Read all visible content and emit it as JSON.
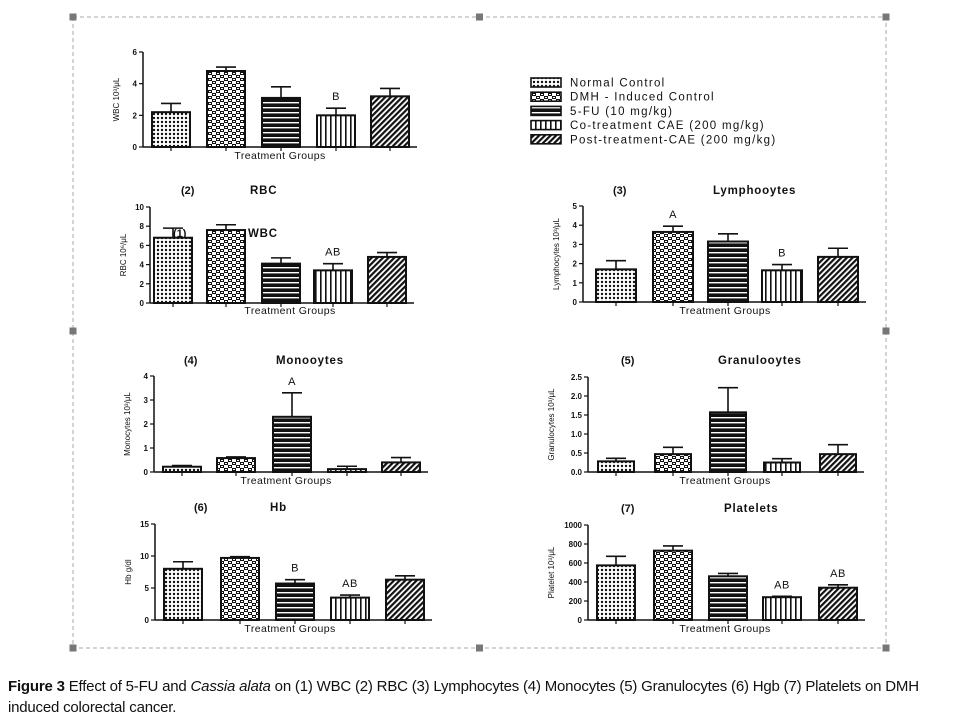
{
  "caption": {
    "label": "Figure 3",
    "text_before_italic": " Effect of 5-FU and ",
    "italic": "Cassia alata",
    "text_after_italic": " on (1) WBC (2) RBC (3) Lymphocytes (4) Monocytes (5) Granulocytes (6) Hgb (7) Platelets on DMH induced colorectal cancer."
  },
  "legend": {
    "placement": "top-right",
    "entries": [
      {
        "name": "Normal Control",
        "pattern": "dots"
      },
      {
        "name": "DMH - Induced Control",
        "pattern": "checker"
      },
      {
        "name": "5-FU (10 mg/kg)",
        "pattern": "hstripes"
      },
      {
        "name": "Co-treatment CAE (200 mg/kg)",
        "pattern": "vstripes"
      },
      {
        "name": "Post-treatment-CAE (200 mg/kg)",
        "pattern": "diagonal"
      }
    ]
  },
  "chart_data": [
    {
      "type": "bar",
      "panel": "(1)",
      "title": "WBC",
      "xlabel": "Treatment Groups",
      "ylabel": "WBC 10³/μL",
      "ylim": [
        0,
        6
      ],
      "yticks": [
        "0",
        "2",
        "4",
        "6"
      ],
      "categories": [
        "Normal Control",
        "DMH - Induced Control",
        "5-FU (10 mg/kg)",
        "Co-treatment CAE (200 mg/kg)",
        "Post-treatment-CAE (200 mg/kg)"
      ],
      "values": [
        2.2,
        4.8,
        3.1,
        2.0,
        3.2
      ],
      "errors": [
        0.55,
        0.25,
        0.7,
        0.45,
        0.5
      ],
      "annotations": [
        "",
        "",
        "",
        "B",
        ""
      ]
    },
    {
      "type": "bar",
      "panel": "(2)",
      "title": "RBC",
      "xlabel": "Treatment Groups",
      "ylabel": "RBC 10⁶/μL",
      "ylim": [
        0,
        10
      ],
      "yticks": [
        "0",
        "2",
        "4",
        "6",
        "8",
        "10"
      ],
      "categories": [
        "Normal Control",
        "DMH - Induced Control",
        "5-FU (10 mg/kg)",
        "Co-treatment CAE (200 mg/kg)",
        "Post-treatment-CAE (200 mg/kg)"
      ],
      "values": [
        6.8,
        7.6,
        4.1,
        3.4,
        4.8
      ],
      "errors": [
        1.0,
        0.55,
        0.6,
        0.7,
        0.45
      ],
      "annotations": [
        "",
        "",
        "",
        "AB",
        ""
      ]
    },
    {
      "type": "bar",
      "panel": "(3)",
      "title": "Lymphooytes",
      "xlabel": "Treatment Groups",
      "ylabel": "Lymphocytes 10³/μL",
      "ylim": [
        0,
        5
      ],
      "yticks": [
        "0",
        "1",
        "2",
        "3",
        "4",
        "5"
      ],
      "categories": [
        "Normal Control",
        "DMH - Induced Control",
        "5-FU (10 mg/kg)",
        "Co-treatment CAE (200 mg/kg)",
        "Post-treatment-CAE (200 mg/kg)"
      ],
      "values": [
        1.7,
        3.65,
        3.15,
        1.65,
        2.35
      ],
      "errors": [
        0.45,
        0.3,
        0.4,
        0.3,
        0.45
      ],
      "annotations": [
        "",
        "A",
        "",
        "B",
        ""
      ]
    },
    {
      "type": "bar",
      "panel": "(4)",
      "title": "Monooytes",
      "xlabel": "Treatment Groups",
      "ylabel": "Monocytes 10³/μL",
      "ylim": [
        0,
        4
      ],
      "yticks": [
        "0",
        "1",
        "2",
        "3",
        "4"
      ],
      "categories": [
        "Normal Control",
        "DMH - Induced Control",
        "5-FU (10 mg/kg)",
        "Co-treatment CAE (200 mg/kg)",
        "Post-treatment-CAE (200 mg/kg)"
      ],
      "values": [
        0.22,
        0.58,
        2.3,
        0.12,
        0.4
      ],
      "errors": [
        0.05,
        0.05,
        1.0,
        0.12,
        0.2
      ],
      "annotations": [
        "",
        "",
        "A",
        "",
        ""
      ]
    },
    {
      "type": "bar",
      "panel": "(5)",
      "title": "Granulooytes",
      "xlabel": "Treatment Groups",
      "ylabel": "Granulocytes 10³/μL",
      "ylim": [
        0,
        2.5
      ],
      "yticks": [
        "0.0",
        "0.5",
        "1.0",
        "1.5",
        "2.0",
        "2.5"
      ],
      "categories": [
        "Normal Control",
        "DMH - Induced Control",
        "5-FU (10 mg/kg)",
        "Co-treatment CAE (200 mg/kg)",
        "Post-treatment-CAE (200 mg/kg)"
      ],
      "values": [
        0.28,
        0.47,
        1.57,
        0.25,
        0.47
      ],
      "errors": [
        0.08,
        0.18,
        0.65,
        0.1,
        0.25
      ],
      "annotations": [
        "",
        "",
        "",
        "",
        ""
      ]
    },
    {
      "type": "bar",
      "panel": "(6)",
      "title": "Hb",
      "xlabel": "Treatment Groups",
      "ylabel": "Hb g/dl",
      "ylim": [
        0,
        15
      ],
      "yticks": [
        "0",
        "5",
        "10",
        "15"
      ],
      "categories": [
        "Normal Control",
        "DMH - Induced Control",
        "5-FU (10 mg/kg)",
        "Co-treatment CAE (200 mg/kg)",
        "Post-treatment-CAE (200 mg/kg)"
      ],
      "values": [
        8.0,
        9.7,
        5.7,
        3.5,
        6.3
      ],
      "errors": [
        1.1,
        0.2,
        0.6,
        0.4,
        0.6
      ],
      "annotations": [
        "",
        "",
        "B",
        "AB",
        ""
      ]
    },
    {
      "type": "bar",
      "panel": "(7)",
      "title": "Platelets",
      "xlabel": "Treatment Groups",
      "ylabel": "Platelet 10³/μL",
      "ylim": [
        0,
        1000
      ],
      "yticks": [
        "0",
        "200",
        "400",
        "600",
        "800",
        "1000"
      ],
      "categories": [
        "Normal Control",
        "DMH - Induced Control",
        "5-FU (10 mg/kg)",
        "Co-treatment CAE (200 mg/kg)",
        "Post-treatment-CAE (200 mg/kg)"
      ],
      "values": [
        575,
        730,
        460,
        240,
        340
      ],
      "errors": [
        95,
        50,
        30,
        10,
        30
      ],
      "annotations": [
        "",
        "",
        "",
        "AB",
        "AB"
      ]
    }
  ]
}
